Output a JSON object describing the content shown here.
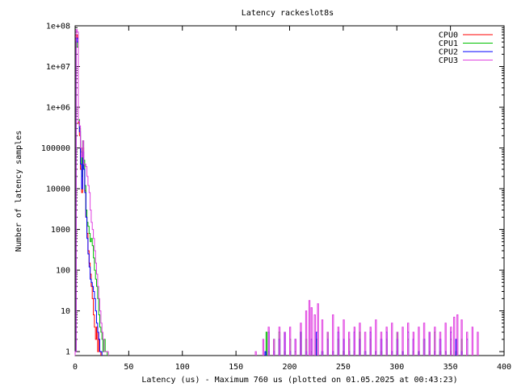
{
  "chart_data": {
    "type": "line",
    "title": "Latency rackeslot8s",
    "xlabel": "Latency (us) - Maximum 760 us (plotted on 01.05.2025 at 00:43:23)",
    "ylabel": "Number of latency samples",
    "xlim": [
      0,
      400
    ],
    "ylim": [
      0.8,
      100000000
    ],
    "yscale": "log",
    "x_ticks": [
      0,
      50,
      100,
      150,
      200,
      250,
      300,
      350,
      400
    ],
    "x_tick_labels": [
      "0",
      "50",
      "100",
      "150",
      "200",
      "250",
      "300",
      "350",
      "400"
    ],
    "y_ticks": [
      1,
      10,
      100,
      1000,
      10000,
      100000,
      1000000,
      10000000,
      100000000
    ],
    "y_tick_labels": [
      "1",
      "10",
      "100",
      "1000",
      "10000",
      "100000",
      "1e+06",
      "1e+07",
      "1e+08"
    ],
    "grid": false,
    "legend_position": "top-right",
    "series": [
      {
        "name": "CPU0",
        "color": "#ff0000",
        "x": [
          0,
          1,
          2,
          3,
          4,
          5,
          6,
          7,
          8,
          9,
          10,
          11,
          12,
          13,
          14,
          15,
          16,
          17,
          18,
          19,
          20,
          21,
          22,
          23
        ],
        "y": [
          1,
          60000000,
          50000000,
          400000,
          200000,
          30000,
          8000,
          100000,
          40000,
          9000,
          2000,
          800,
          300,
          150,
          80,
          40,
          20,
          8,
          4,
          2,
          4,
          1,
          2,
          1
        ]
      },
      {
        "name": "CPU1",
        "color": "#00c000",
        "x": [
          0,
          1,
          2,
          3,
          4,
          5,
          6,
          7,
          8,
          9,
          10,
          11,
          12,
          13,
          14,
          15,
          16,
          17,
          18,
          19,
          20,
          21,
          22,
          23,
          24,
          25,
          26,
          27,
          28,
          29,
          178,
          180,
          185,
          190,
          195,
          200,
          205,
          210,
          215,
          220,
          225,
          230,
          235,
          240,
          245,
          250,
          255,
          260,
          265,
          270,
          275,
          280,
          285,
          290,
          295,
          300,
          305,
          310,
          315,
          320,
          325,
          330,
          335,
          340,
          345,
          350,
          355,
          360
        ],
        "y": [
          1,
          40000000,
          30000000,
          500000,
          300000,
          80000,
          20000,
          150000,
          50000,
          12000,
          3000,
          1500,
          1200,
          800,
          500,
          600,
          400,
          200,
          100,
          60,
          40,
          20,
          8,
          4,
          3,
          2,
          1,
          2,
          1,
          1,
          3,
          1,
          2,
          3,
          1,
          2,
          1,
          3,
          2,
          1,
          2,
          1,
          3,
          1,
          2,
          1,
          2,
          1,
          3,
          1,
          2,
          1,
          1,
          2,
          1,
          3,
          1,
          2,
          1,
          1,
          2,
          1,
          3,
          1,
          1,
          2,
          1,
          2
        ]
      },
      {
        "name": "CPU2",
        "color": "#0000ff",
        "x": [
          0,
          1,
          2,
          3,
          4,
          5,
          6,
          7,
          8,
          9,
          10,
          11,
          12,
          13,
          14,
          15,
          16,
          17,
          18,
          19,
          20,
          21,
          22,
          23,
          24,
          177,
          180,
          185,
          190,
          195,
          200,
          205,
          210,
          215,
          220,
          225,
          230,
          235,
          240,
          245,
          250,
          255,
          260,
          265,
          270,
          275,
          280,
          285,
          290,
          295,
          300,
          305,
          310,
          315,
          320,
          325,
          330,
          335,
          340,
          345,
          350,
          355,
          360,
          365
        ],
        "y": [
          1,
          50000000,
          40000000,
          450000,
          250000,
          40000,
          10000,
          80000,
          30000,
          8000,
          2000,
          600,
          250,
          120,
          60,
          50,
          40,
          30,
          20,
          10,
          5,
          3,
          2,
          1,
          1,
          1,
          3,
          1,
          2,
          3,
          1,
          2,
          3,
          1,
          2,
          3,
          1,
          2,
          1,
          3,
          2,
          1,
          3,
          2,
          1,
          3,
          1,
          2,
          3,
          1,
          2,
          1,
          3,
          2,
          1,
          2,
          3,
          1,
          2,
          1,
          3,
          2,
          1,
          2
        ]
      },
      {
        "name": "CPU3",
        "color": "#e040e0",
        "x": [
          0,
          1,
          2,
          3,
          4,
          5,
          6,
          7,
          8,
          9,
          10,
          11,
          12,
          13,
          14,
          15,
          16,
          17,
          18,
          19,
          20,
          21,
          22,
          23,
          24,
          25,
          26,
          27,
          28,
          29,
          30,
          168,
          175,
          180,
          185,
          190,
          195,
          200,
          205,
          210,
          215,
          218,
          220,
          223,
          226,
          230,
          235,
          240,
          245,
          250,
          255,
          260,
          265,
          270,
          275,
          280,
          285,
          290,
          295,
          300,
          305,
          310,
          315,
          320,
          325,
          330,
          335,
          340,
          345,
          350,
          353,
          356,
          360,
          365,
          370,
          375
        ],
        "y": [
          1,
          80000000,
          70000000,
          450000,
          350000,
          100000,
          60000,
          150000,
          40000,
          40000,
          35000,
          20000,
          12000,
          8000,
          3000,
          1500,
          1000,
          600,
          300,
          150,
          80,
          40,
          20,
          10,
          5,
          3,
          2,
          1,
          1,
          1,
          1,
          1,
          2,
          4,
          2,
          4,
          3,
          4,
          2,
          5,
          10,
          18,
          12,
          8,
          15,
          6,
          3,
          8,
          4,
          6,
          3,
          4,
          5,
          3,
          4,
          6,
          3,
          4,
          5,
          3,
          4,
          5,
          3,
          4,
          5,
          3,
          4,
          3,
          5,
          4,
          7,
          8,
          6,
          3,
          4,
          3
        ]
      }
    ]
  }
}
